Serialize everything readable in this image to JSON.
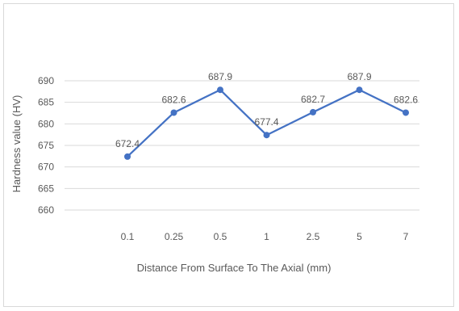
{
  "chart_data": {
    "type": "line",
    "title": "",
    "xlabel": "Distance From Surface To The Axial (mm)",
    "ylabel": "Hardness value (HV)",
    "categories": [
      "0.1",
      "0.25",
      "0.5",
      "1",
      "2.5",
      "5",
      "7"
    ],
    "series": [
      {
        "values": [
          672.4,
          682.6,
          687.9,
          677.4,
          682.7,
          687.9,
          682.6
        ],
        "labels": [
          "672.4",
          "682.6",
          "687.9",
          "677.4",
          "682.7",
          "687.9",
          "682.6"
        ],
        "color": "#4472c4"
      }
    ],
    "ylim": [
      660,
      690
    ],
    "yticks": [
      "660",
      "665",
      "670",
      "675",
      "680",
      "685",
      "690"
    ],
    "grid": true,
    "gridColor": "#d9d9d9",
    "legend": "none"
  }
}
